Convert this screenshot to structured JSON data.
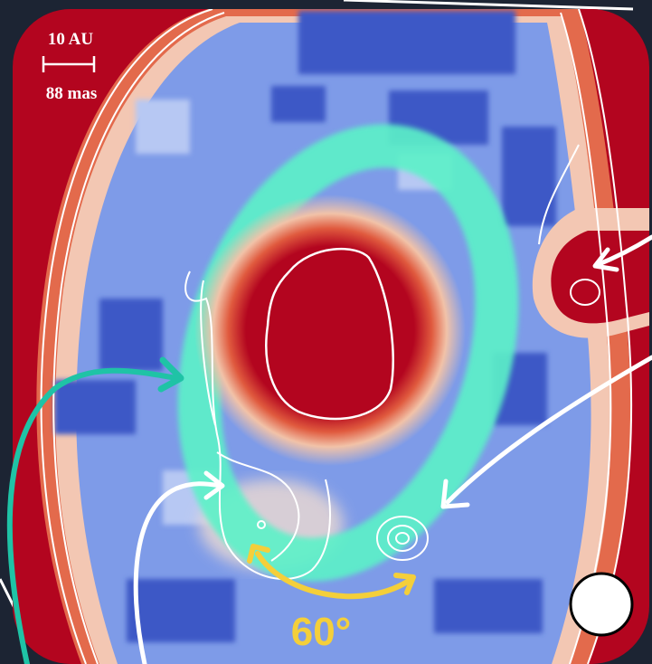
{
  "scale_bar": {
    "distance_label": "10 AU",
    "angle_label": "88 mas"
  },
  "annotation": {
    "angle": "60°"
  },
  "colors": {
    "background": "#1c2433",
    "map_outer": "#b3051f",
    "map_low": "#5a7de0",
    "map_mid": "#9cb4ef",
    "ring": "#5cf2c8",
    "angle_arrow": "#f4cf3a",
    "teal_arrow": "#1fc3a6"
  },
  "icons": [
    "scale-bar-icon",
    "arrow-icon",
    "beam-circle-icon"
  ]
}
